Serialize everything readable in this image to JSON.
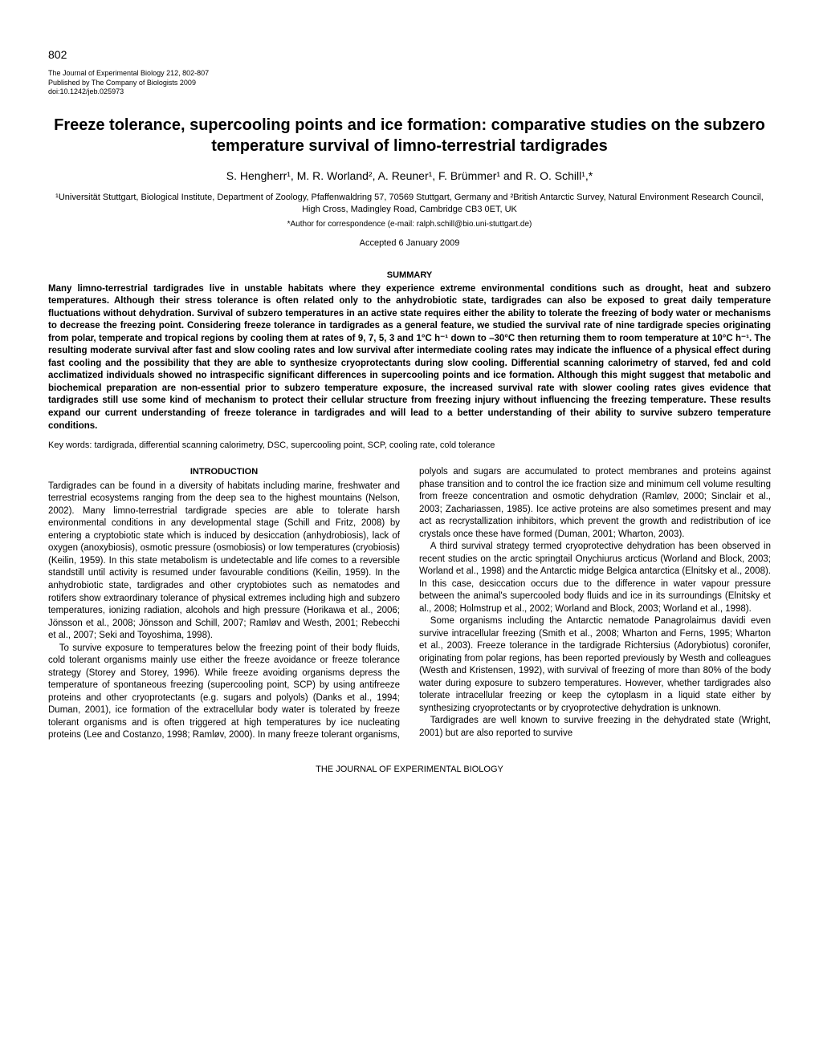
{
  "page_number": "802",
  "journal": {
    "line1": "The Journal of Experimental Biology 212, 802-807",
    "line2": "Published by The Company of Biologists 2009",
    "line3": "doi:10.1242/jeb.025973"
  },
  "title": "Freeze tolerance, supercooling points and ice formation: comparative studies on the subzero temperature survival of limno-terrestrial tardigrades",
  "authors": "S. Hengherr¹, M. R. Worland², A. Reuner¹, F. Brümmer¹ and R. O. Schill¹,*",
  "affiliations": "¹Universität Stuttgart, Biological Institute, Department of Zoology, Pfaffenwaldring 57, 70569 Stuttgart, Germany and ²British Antarctic Survey, Natural Environment Research Council, High Cross, Madingley Road, Cambridge CB3 0ET, UK",
  "correspondence": "*Author for correspondence (e-mail: ralph.schill@bio.uni-stuttgart.de)",
  "accepted": "Accepted 6 January 2009",
  "summary_heading": "SUMMARY",
  "summary_text": "Many limno-terrestrial tardigrades live in unstable habitats where they experience extreme environmental conditions such as drought, heat and subzero temperatures. Although their stress tolerance is often related only to the anhydrobiotic state, tardigrades can also be exposed to great daily temperature fluctuations without dehydration. Survival of subzero temperatures in an active state requires either the ability to tolerate the freezing of body water or mechanisms to decrease the freezing point. Considering freeze tolerance in tardigrades as a general feature, we studied the survival rate of nine tardigrade species originating from polar, temperate and tropical regions by cooling them at rates of 9, 7, 5, 3 and 1°C h⁻¹ down to –30°C then returning them to room temperature at 10°C h⁻¹. The resulting moderate survival after fast and slow cooling rates and low survival after intermediate cooling rates may indicate the influence of a physical effect during fast cooling and the possibility that they are able to synthesize cryoprotectants during slow cooling. Differential scanning calorimetry of starved, fed and cold acclimatized individuals showed no intraspecific significant differences in supercooling points and ice formation. Although this might suggest that metabolic and biochemical preparation are non-essential prior to subzero temperature exposure, the increased survival rate with slower cooling rates gives evidence that tardigrades still use some kind of mechanism to protect their cellular structure from freezing injury without influencing the freezing temperature. These results expand our current understanding of freeze tolerance in tardigrades and will lead to a better understanding of their ability to survive subzero temperature conditions.",
  "keywords": "Key words: tardigrada, differential scanning calorimetry, DSC, supercooling point, SCP, cooling rate, cold tolerance",
  "intro_heading": "INTRODUCTION",
  "body": {
    "p1": "Tardigrades can be found in a diversity of habitats including marine, freshwater and terrestrial ecosystems ranging from the deep sea to the highest mountains (Nelson, 2002). Many limno-terrestrial tardigrade species are able to tolerate harsh environmental conditions in any developmental stage (Schill and Fritz, 2008) by entering a cryptobiotic state which is induced by desiccation (anhydrobiosis), lack of oxygen (anoxybiosis), osmotic pressure (osmobiosis) or low temperatures (cryobiosis) (Keilin, 1959). In this state metabolism is undetectable and life comes to a reversible standstill until activity is resumed under favourable conditions (Keilin, 1959). In the anhydrobiotic state, tardigrades and other cryptobiotes such as nematodes and rotifers show extraordinary tolerance of physical extremes including high and subzero temperatures, ionizing radiation, alcohols and high pressure (Horikawa et al., 2006; Jönsson et al., 2008; Jönsson and Schill, 2007; Ramløv and Westh, 2001; Rebecchi et al., 2007; Seki and Toyoshima, 1998).",
    "p2": "To survive exposure to temperatures below the freezing point of their body fluids, cold tolerant organisms mainly use either the freeze avoidance or freeze tolerance strategy (Storey and Storey, 1996). While freeze avoiding organisms depress the temperature of spontaneous freezing (supercooling point, SCP) by using antifreeze proteins and other cryoprotectants (e.g. sugars and polyols) (Danks et al., 1994; Duman, 2001), ice formation of the extracellular body water is tolerated by freeze tolerant organisms and is often triggered at high temperatures by ice nucleating proteins (Lee and Costanzo, 1998; Ramløv, 2000). In many freeze tolerant organisms, polyols and sugars are accumulated to protect membranes and proteins against phase transition and to control the ice fraction size and minimum cell volume resulting from freeze concentration and osmotic dehydration (Ramløv, 2000; Sinclair et al., 2003; Zachariassen, 1985). Ice active proteins are also sometimes present and may act as recrystallization inhibitors, which prevent the growth and redistribution of ice crystals once these have formed (Duman, 2001; Wharton, 2003).",
    "p3": "A third survival strategy termed cryoprotective dehydration has been observed in recent studies on the arctic springtail Onychiurus arcticus (Worland and Block, 2003; Worland et al., 1998) and the Antarctic midge Belgica antarctica (Elnitsky et al., 2008). In this case, desiccation occurs due to the difference in water vapour pressure between the animal's supercooled body fluids and ice in its surroundings (Elnitsky et al., 2008; Holmstrup et al., 2002; Worland and Block, 2003; Worland et al., 1998).",
    "p4": "Some organisms including the Antarctic nematode Panagrolaimus davidi even survive intracellular freezing (Smith et al., 2008; Wharton and Ferns, 1995; Wharton et al., 2003). Freeze tolerance in the tardigrade Richtersius (Adorybiotus) coronifer, originating from polar regions, has been reported previously by Westh and colleagues (Westh and Kristensen, 1992), with survival of freezing of more than 80% of the body water during exposure to subzero temperatures. However, whether tardigrades also tolerate intracellular freezing or keep the cytoplasm in a liquid state either by synthesizing cryoprotectants or by cryoprotective dehydration is unknown.",
    "p5": "Tardigrades are well known to survive freezing in the dehydrated state (Wright, 2001) but are also reported to survive"
  },
  "footer": "THE JOURNAL OF EXPERIMENTAL BIOLOGY"
}
